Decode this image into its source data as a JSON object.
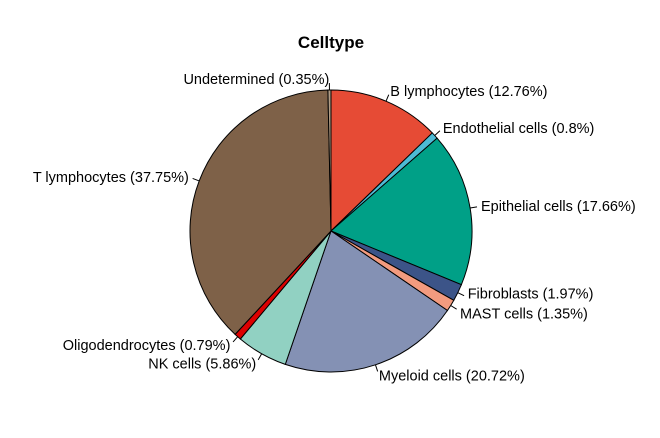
{
  "chart_data": {
    "type": "pie",
    "title": "Celltype",
    "start": "12 o'clock",
    "direction": "clockwise",
    "slices": [
      {
        "label": "B lymphocytes",
        "value": 12.76,
        "text": "B lymphocytes (12.76%)",
        "color": "#E64B35"
      },
      {
        "label": "Endothelial cells",
        "value": 0.8,
        "text": "Endothelial cells (0.8%)",
        "color": "#4DBBD5"
      },
      {
        "label": "Epithelial cells",
        "value": 17.66,
        "text": "Epithelial cells (17.66%)",
        "color": "#00A087"
      },
      {
        "label": "Fibroblasts",
        "value": 1.97,
        "text": "Fibroblasts (1.97%)",
        "color": "#3C5488"
      },
      {
        "label": "MAST cells",
        "value": 1.35,
        "text": "MAST cells (1.35%)",
        "color": "#F39B7F"
      },
      {
        "label": "Myeloid cells",
        "value": 20.72,
        "text": "Myeloid cells (20.72%)",
        "color": "#8491B4"
      },
      {
        "label": "NK cells",
        "value": 5.86,
        "text": "NK cells (5.86%)",
        "color": "#91D1C2"
      },
      {
        "label": "Oligodendrocytes",
        "value": 0.79,
        "text": "Oligodendrocytes (0.79%)",
        "color": "#DC0000"
      },
      {
        "label": "T lymphocytes",
        "value": 37.75,
        "text": "T lymphocytes (37.75%)",
        "color": "#7E6148"
      },
      {
        "label": "Undetermined",
        "value": 0.35,
        "text": "Undetermined (0.35%)",
        "color": "#B09C85"
      }
    ]
  }
}
